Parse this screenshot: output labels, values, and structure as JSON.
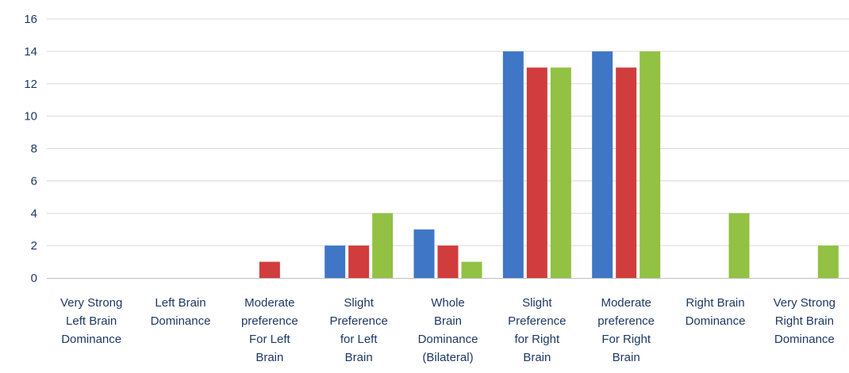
{
  "chart_data": {
    "type": "bar",
    "categories": [
      [
        "Very Strong",
        "Left Brain",
        "Dominance"
      ],
      [
        "Left Brain",
        "Dominance"
      ],
      [
        "Moderate",
        "preference",
        "For Left",
        "Brain"
      ],
      [
        "Slight",
        "Preference",
        "for Left",
        "Brain"
      ],
      [
        "Whole",
        "Brain",
        "Dominance",
        "(Bilateral)"
      ],
      [
        "Slight",
        "Preference",
        "for Right",
        "Brain"
      ],
      [
        "Moderate",
        "preference",
        "For Right",
        "Brain"
      ],
      [
        "Right Brain",
        "Dominance"
      ],
      [
        "Very Strong",
        "Right Brain",
        "Dominance"
      ]
    ],
    "series": [
      {
        "values": [
          0,
          0,
          0,
          2,
          3,
          14,
          14,
          0,
          0
        ],
        "color": "#3f76c5"
      },
      {
        "values": [
          0,
          0,
          1,
          2,
          2,
          13,
          13,
          0,
          0
        ],
        "color": "#d13c3c"
      },
      {
        "values": [
          0,
          0,
          0,
          4,
          1,
          13,
          14,
          4,
          2
        ],
        "color": "#92c143"
      }
    ],
    "y_ticks": [
      0,
      2,
      4,
      6,
      8,
      10,
      12,
      14,
      16
    ],
    "ylim": [
      0,
      16
    ],
    "grid": true,
    "legend": "none",
    "title": "",
    "xlabel": "",
    "ylabel": ""
  }
}
